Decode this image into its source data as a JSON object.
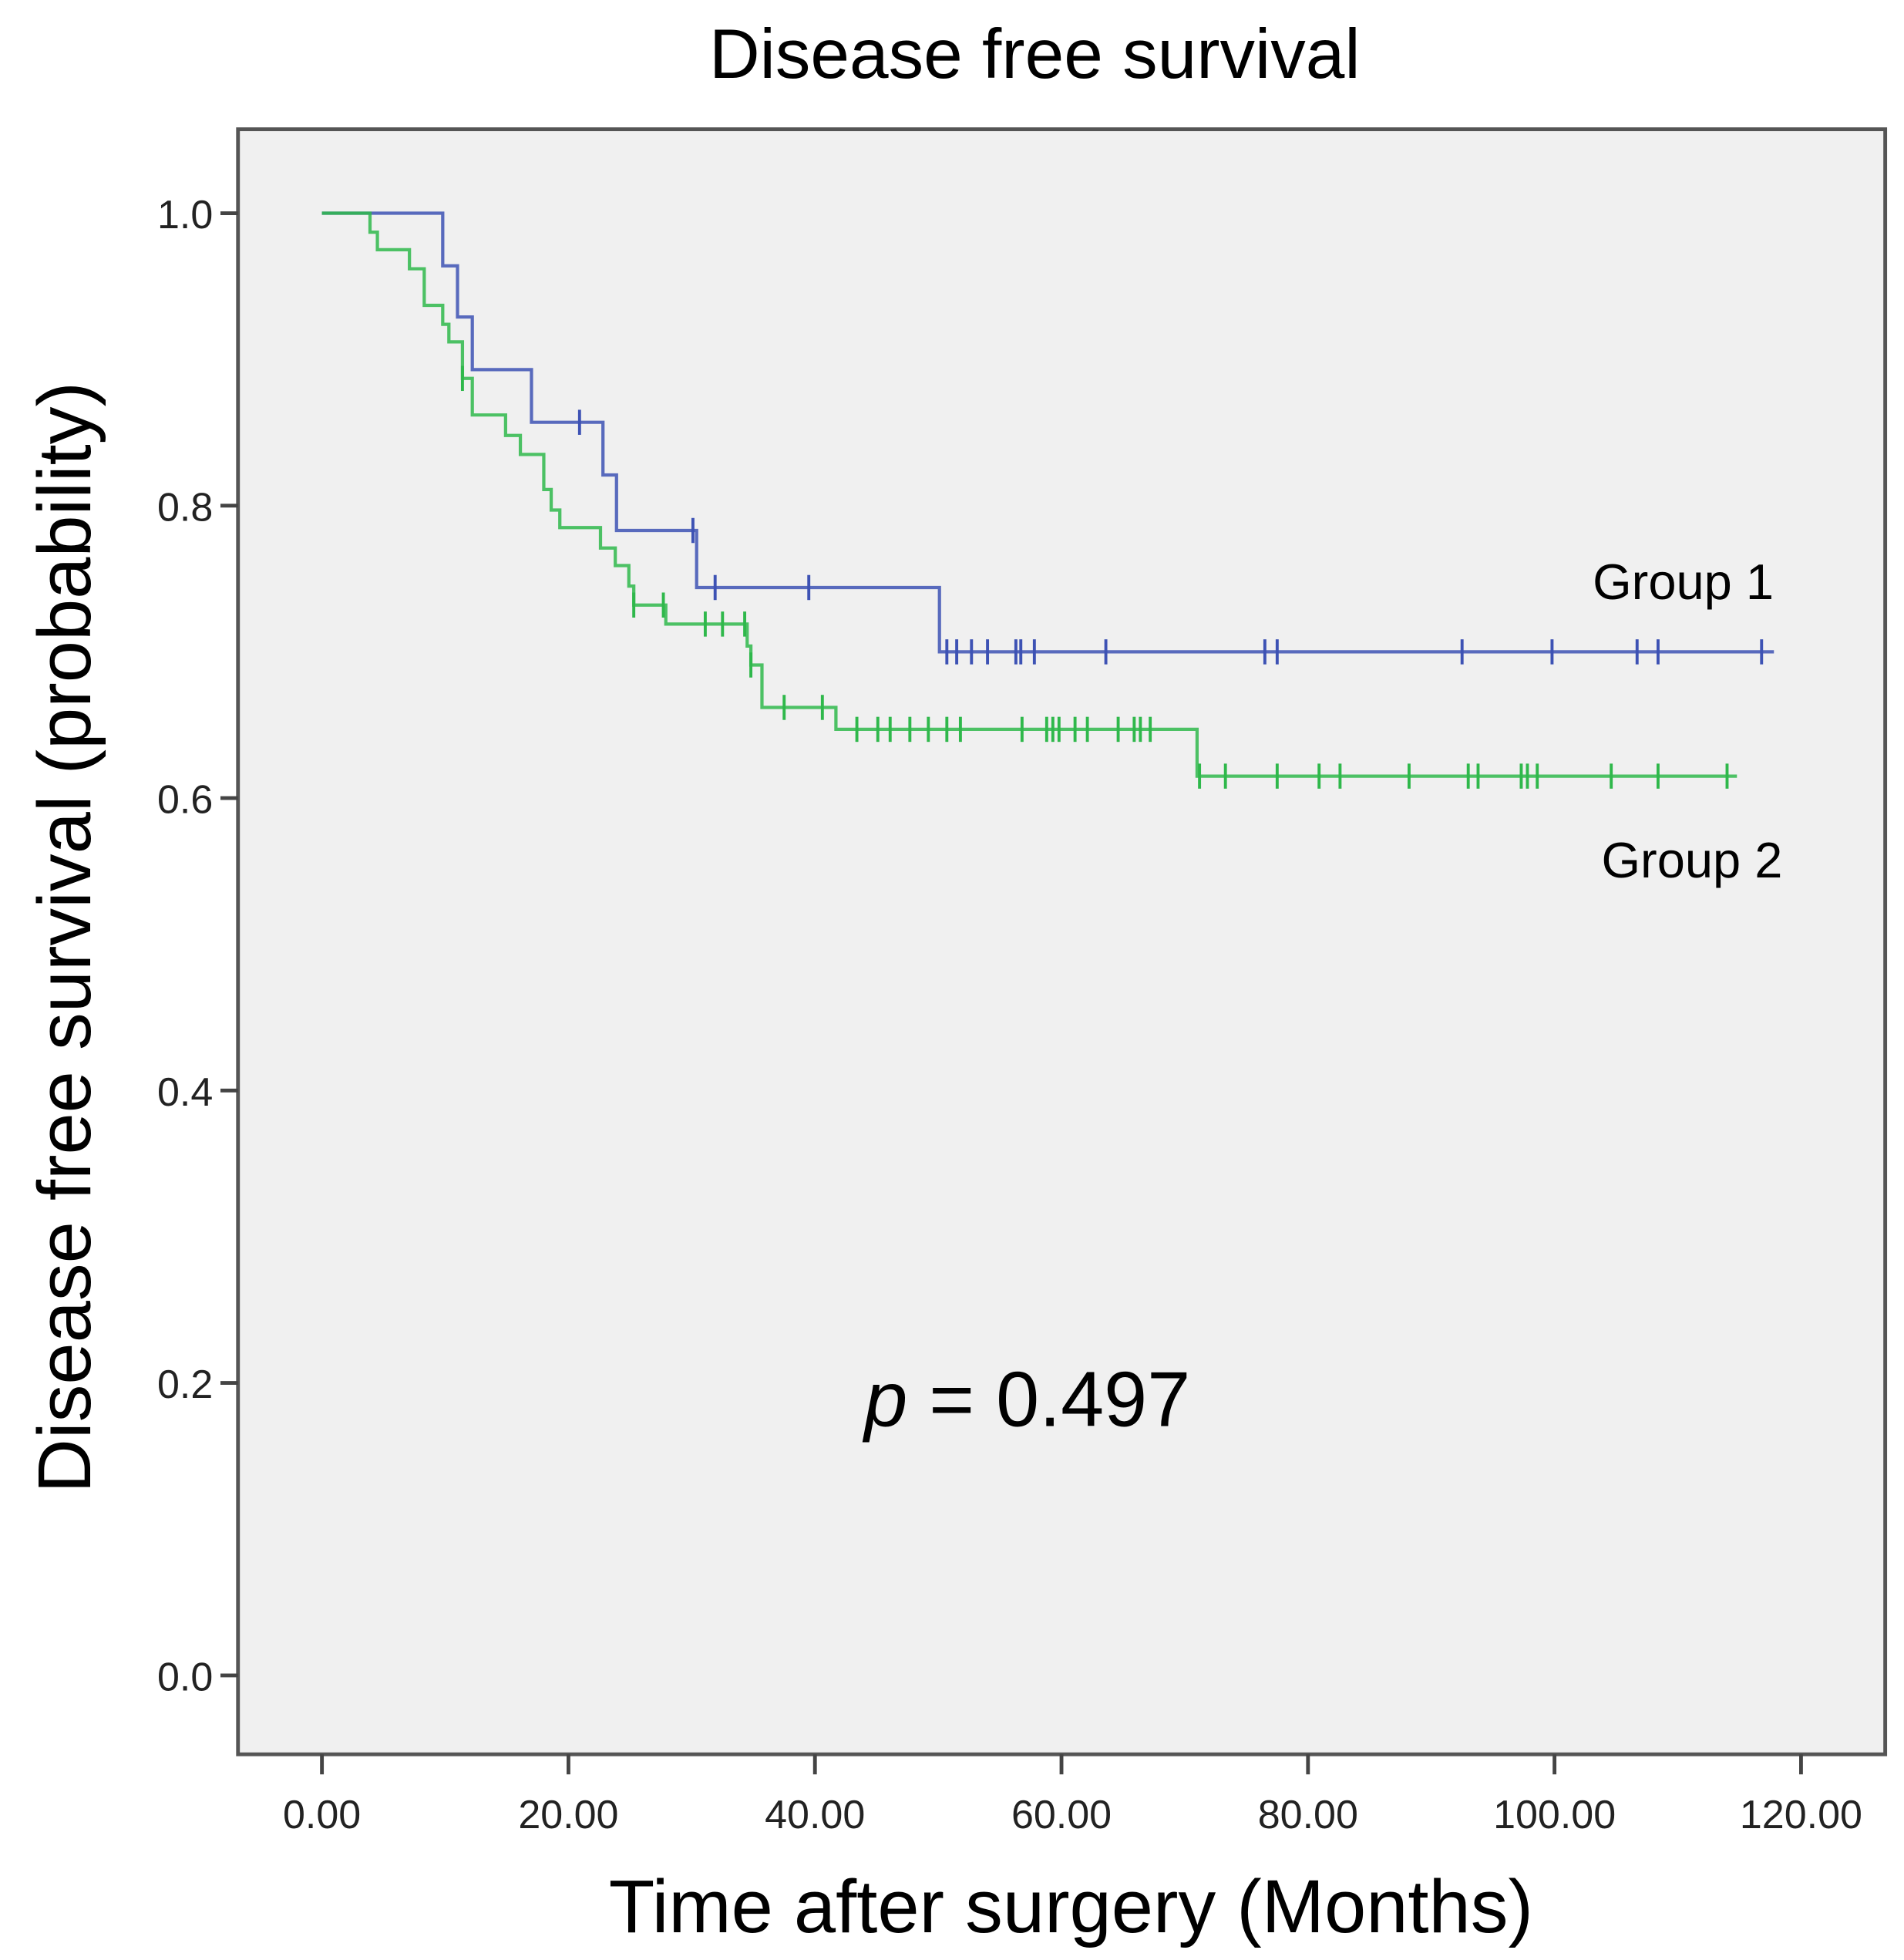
{
  "chart_data": {
    "type": "line",
    "subtype": "kaplan-meier",
    "title": "Disease free survival",
    "xlabel": "Time after surgery (Months)",
    "ylabel": "Disease free survival (probability)",
    "xlim": [
      -7,
      127
    ],
    "ylim": [
      -0.05,
      1.06
    ],
    "xticks": [
      0,
      20,
      40,
      60,
      80,
      100,
      120
    ],
    "xtick_labels": [
      "0.00",
      "20.00",
      "40.00",
      "60.00",
      "80.00",
      "100.00",
      "120.00"
    ],
    "yticks": [
      0,
      0.2,
      0.4,
      0.6,
      0.8,
      1.0
    ],
    "ytick_labels": [
      "0.0",
      "0.2",
      "0.4",
      "0.6",
      "0.8",
      "1.0"
    ],
    "grid": false,
    "background": "#f0f0f0",
    "annotation": {
      "p_symbol": "p",
      "p_rest": " = 0.497"
    },
    "series": [
      {
        "name": "Group 1",
        "color": "#3d52b4",
        "steps": [
          [
            0,
            1.0
          ],
          [
            9.8,
            0.964
          ],
          [
            11.0,
            0.929
          ],
          [
            12.2,
            0.893
          ],
          [
            17.0,
            0.857
          ],
          [
            22.8,
            0.821
          ],
          [
            23.9,
            0.783
          ],
          [
            30.4,
            0.744
          ],
          [
            50.1,
            0.7
          ]
        ],
        "end_time": 117.8,
        "censored": [
          [
            20.9,
            0.857
          ],
          [
            30.1,
            0.783
          ],
          [
            31.9,
            0.744
          ],
          [
            39.5,
            0.744
          ],
          [
            50.7,
            0.7
          ],
          [
            51.5,
            0.7
          ],
          [
            52.7,
            0.7
          ],
          [
            54.0,
            0.7
          ],
          [
            56.3,
            0.7
          ],
          [
            56.7,
            0.7
          ],
          [
            57.8,
            0.7
          ],
          [
            63.6,
            0.7
          ],
          [
            76.5,
            0.7
          ],
          [
            77.5,
            0.7
          ],
          [
            92.5,
            0.7
          ],
          [
            99.8,
            0.7
          ],
          [
            106.7,
            0.7
          ],
          [
            108.4,
            0.7
          ],
          [
            116.8,
            0.7
          ]
        ]
      },
      {
        "name": "Group 2",
        "color": "#2fb84b",
        "steps": [
          [
            0,
            1.0
          ],
          [
            3.9,
            0.987
          ],
          [
            4.5,
            0.975
          ],
          [
            7.1,
            0.962
          ],
          [
            8.3,
            0.937
          ],
          [
            9.8,
            0.924
          ],
          [
            10.3,
            0.912
          ],
          [
            11.4,
            0.887
          ],
          [
            12.2,
            0.862
          ],
          [
            14.9,
            0.848
          ],
          [
            16.1,
            0.835
          ],
          [
            18.0,
            0.811
          ],
          [
            18.6,
            0.797
          ],
          [
            19.3,
            0.785
          ],
          [
            22.6,
            0.771
          ],
          [
            23.8,
            0.759
          ],
          [
            24.9,
            0.745
          ],
          [
            25.3,
            0.732
          ],
          [
            27.9,
            0.719
          ],
          [
            34.5,
            0.704
          ],
          [
            34.8,
            0.691
          ],
          [
            35.7,
            0.662
          ],
          [
            41.7,
            0.647
          ],
          [
            71.0,
            0.615
          ]
        ],
        "end_time": 114.8,
        "censored": [
          [
            11.4,
            0.887
          ],
          [
            25.3,
            0.732
          ],
          [
            27.7,
            0.732
          ],
          [
            31.1,
            0.719
          ],
          [
            32.5,
            0.719
          ],
          [
            34.3,
            0.719
          ],
          [
            34.8,
            0.691
          ],
          [
            37.5,
            0.662
          ],
          [
            40.6,
            0.662
          ],
          [
            43.4,
            0.647
          ],
          [
            45.1,
            0.647
          ],
          [
            46.1,
            0.647
          ],
          [
            47.7,
            0.647
          ],
          [
            49.2,
            0.647
          ],
          [
            50.7,
            0.647
          ],
          [
            51.8,
            0.647
          ],
          [
            56.8,
            0.647
          ],
          [
            58.8,
            0.647
          ],
          [
            59.3,
            0.647
          ],
          [
            59.8,
            0.647
          ],
          [
            61.1,
            0.647
          ],
          [
            62.1,
            0.647
          ],
          [
            64.6,
            0.647
          ],
          [
            65.9,
            0.647
          ],
          [
            66.4,
            0.647
          ],
          [
            67.2,
            0.647
          ],
          [
            71.2,
            0.615
          ],
          [
            73.3,
            0.615
          ],
          [
            77.5,
            0.615
          ],
          [
            80.9,
            0.615
          ],
          [
            82.6,
            0.615
          ],
          [
            88.2,
            0.615
          ],
          [
            93.0,
            0.615
          ],
          [
            93.8,
            0.615
          ],
          [
            97.3,
            0.615
          ],
          [
            97.8,
            0.615
          ],
          [
            98.6,
            0.615
          ],
          [
            104.6,
            0.615
          ],
          [
            108.4,
            0.615
          ],
          [
            114.0,
            0.615
          ]
        ]
      }
    ]
  }
}
